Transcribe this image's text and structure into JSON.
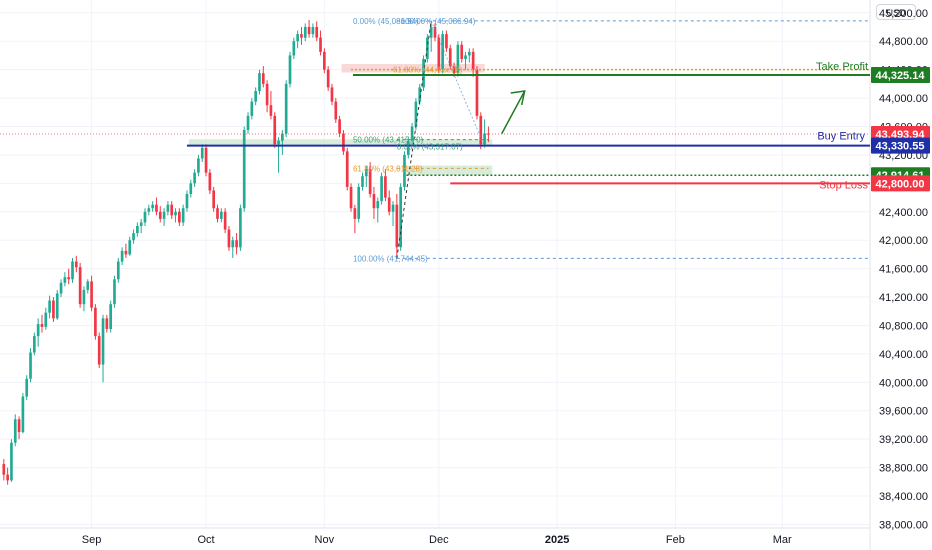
{
  "currency_button": "USD",
  "chart_data": {
    "type": "candlestick",
    "y_axis": {
      "ticks": [
        "45,200.00",
        "44,800.00",
        "44,400.00",
        "44,000.00",
        "43,600.00",
        "43,200.00",
        "42,800.00",
        "42,400.00",
        "42,000.00",
        "41,600.00",
        "41,200.00",
        "40,800.00",
        "40,400.00",
        "40,000.00",
        "39,600.00",
        "39,200.00",
        "38,800.00",
        "38,400.00",
        "38,000.00"
      ],
      "tick_values": [
        45200,
        44800,
        44400,
        44000,
        43600,
        43200,
        42800,
        42400,
        42000,
        41600,
        41200,
        40800,
        40400,
        40000,
        39600,
        39200,
        38800,
        38400,
        38000
      ],
      "range": [
        37950,
        45380
      ],
      "position": "right"
    },
    "x_axis": {
      "labels": [
        "Sep",
        "Oct",
        "Nov",
        "Dec",
        "2025",
        "Feb",
        "Mar"
      ],
      "label_days": [
        12,
        42,
        73,
        103,
        134,
        165,
        193
      ],
      "range": [
        -12,
        216
      ],
      "bold_label": "2025"
    },
    "price_tags": [
      {
        "text": "44,325.14",
        "value": 44325.14,
        "color": "#1e7d22"
      },
      {
        "text": "43,493.94",
        "value": 43493.94,
        "color": "#f23645"
      },
      {
        "text": "43,330.55",
        "value": 43330.55,
        "color": "#1f2fa8"
      },
      {
        "text": "42,914.61",
        "value": 42914.61,
        "color": "#1e7d22"
      },
      {
        "text": "42,800.00",
        "value": 42800.0,
        "color": "#f23645"
      }
    ],
    "annotations": {
      "take_profit": {
        "text": "Take Profit",
        "value": 44325.14,
        "color": "#1e7d22"
      },
      "buy_entry": {
        "text": "Buy Entry",
        "value": 43330.55,
        "color": "#1f2fa8"
      },
      "stop_loss": {
        "text": "Stop Loss",
        "value": 42800.0,
        "color": "#f23645"
      }
    },
    "fib_upper": [
      {
        "text": "0.00% (45,086.94)",
        "value": 45086.94,
        "color": "#5b9bd5"
      },
      {
        "text": "100.00% (45,086.94)",
        "value": 45086.94,
        "color": "#5b9bd5"
      },
      {
        "text": "61.80% (44,4xx.72)",
        "value": 44410,
        "color": "#e39b2d"
      },
      {
        "text": "50.00% (43,415.70)",
        "value": 43415.7,
        "color": "#3aa07a"
      },
      {
        "text": "0.00% (43,317.07)",
        "value": 43317.07,
        "color": "#3aa07a"
      }
    ],
    "fib_lower": [
      {
        "text": "61.80% (43,011.28)",
        "value": 43011.28,
        "color": "#e39b2d"
      },
      {
        "text": "100.00% (41,744.45)",
        "value": 41744.45,
        "color": "#5b9bd5"
      }
    ],
    "last_price": 43493.94,
    "candles": [
      [
        -11,
        38850,
        38920,
        38620,
        38700
      ],
      [
        -10,
        38700,
        38800,
        38560,
        38620
      ],
      [
        -9,
        38620,
        39200,
        38600,
        39150
      ],
      [
        -8,
        39150,
        39550,
        39100,
        39480
      ],
      [
        -7,
        39480,
        39520,
        39200,
        39300
      ],
      [
        -6,
        39300,
        39850,
        39280,
        39800
      ],
      [
        -5,
        39800,
        40100,
        39750,
        40050
      ],
      [
        -4,
        40050,
        40480,
        40000,
        40420
      ],
      [
        -3,
        40420,
        40700,
        40380,
        40650
      ],
      [
        -2,
        40650,
        40900,
        40500,
        40820
      ],
      [
        -1,
        40820,
        40950,
        40700,
        40780
      ],
      [
        0,
        40780,
        41050,
        40740,
        40980
      ],
      [
        1,
        40980,
        41220,
        40900,
        41150
      ],
      [
        2,
        41150,
        41200,
        40850,
        40900
      ],
      [
        3,
        40900,
        41300,
        40880,
        41250
      ],
      [
        4,
        41250,
        41450,
        41200,
        41400
      ],
      [
        5,
        41400,
        41550,
        41350,
        41480
      ],
      [
        6,
        41480,
        41600,
        41380,
        41450
      ],
      [
        7,
        41450,
        41750,
        41400,
        41700
      ],
      [
        8,
        41700,
        41780,
        41550,
        41620
      ],
      [
        9,
        41620,
        41680,
        41050,
        41100
      ],
      [
        10,
        41100,
        41350,
        41000,
        41300
      ],
      [
        11,
        41300,
        41450,
        41250,
        41420
      ],
      [
        12,
        41420,
        41500,
        41000,
        41050
      ],
      [
        13,
        41050,
        41100,
        40600,
        40650
      ],
      [
        14,
        40650,
        40700,
        40200,
        40250
      ],
      [
        15,
        40250,
        40950,
        40000,
        40900
      ],
      [
        16,
        40900,
        40950,
        40700,
        40750
      ],
      [
        17,
        40750,
        41150,
        40700,
        41100
      ],
      [
        18,
        41100,
        41500,
        41050,
        41450
      ],
      [
        19,
        41450,
        41750,
        41400,
        41700
      ],
      [
        20,
        41700,
        41900,
        41650,
        41850
      ],
      [
        21,
        41850,
        41950,
        41750,
        41800
      ],
      [
        22,
        41800,
        42050,
        41780,
        42000
      ],
      [
        23,
        42000,
        42150,
        41950,
        42100
      ],
      [
        24,
        42100,
        42250,
        42050,
        42200
      ],
      [
        25,
        42200,
        42300,
        42100,
        42250
      ],
      [
        26,
        42250,
        42450,
        42200,
        42400
      ],
      [
        27,
        42400,
        42500,
        42350,
        42450
      ],
      [
        28,
        42450,
        42550,
        42400,
        42500
      ],
      [
        29,
        42500,
        42600,
        42350,
        42400
      ],
      [
        30,
        42400,
        42480,
        42250,
        42300
      ],
      [
        31,
        42300,
        42450,
        42200,
        42400
      ],
      [
        32,
        42400,
        42550,
        42350,
        42500
      ],
      [
        33,
        42500,
        42550,
        42300,
        42350
      ],
      [
        34,
        42350,
        42450,
        42250,
        42400
      ],
      [
        35,
        42400,
        42450,
        42200,
        42250
      ],
      [
        36,
        42250,
        42500,
        42200,
        42450
      ],
      [
        37,
        42450,
        42700,
        42400,
        42650
      ],
      [
        38,
        42650,
        42850,
        42600,
        42800
      ],
      [
        39,
        42800,
        43000,
        42750,
        42950
      ],
      [
        40,
        42950,
        43200,
        42900,
        43150
      ],
      [
        41,
        43150,
        43350,
        43100,
        43300
      ],
      [
        42,
        43300,
        43350,
        42900,
        42950
      ],
      [
        43,
        42950,
        43000,
        42650,
        42700
      ],
      [
        44,
        42700,
        42750,
        42400,
        42450
      ],
      [
        45,
        42450,
        42500,
        42250,
        42300
      ],
      [
        46,
        42300,
        42450,
        42250,
        42400
      ],
      [
        47,
        42400,
        42450,
        42100,
        42150
      ],
      [
        48,
        42150,
        42200,
        41850,
        41900
      ],
      [
        49,
        41900,
        42050,
        41750,
        42000
      ],
      [
        50,
        42000,
        42100,
        41800,
        41900
      ],
      [
        51,
        41900,
        42500,
        41850,
        42450
      ],
      [
        52,
        42450,
        43600,
        42400,
        43550
      ],
      [
        53,
        43550,
        43800,
        43500,
        43750
      ],
      [
        54,
        43750,
        44000,
        43700,
        43950
      ],
      [
        55,
        43950,
        44150,
        43900,
        44100
      ],
      [
        56,
        44100,
        44400,
        44050,
        44350
      ],
      [
        57,
        44350,
        44450,
        44150,
        44200
      ],
      [
        58,
        44200,
        44250,
        43800,
        43900
      ],
      [
        59,
        43900,
        44100,
        43700,
        43750
      ],
      [
        60,
        43750,
        43800,
        43300,
        43350
      ],
      [
        61,
        43350,
        43450,
        42950,
        43400
      ],
      [
        62,
        43400,
        43550,
        43200,
        43500
      ],
      [
        63,
        43500,
        44250,
        43450,
        44200
      ],
      [
        64,
        44200,
        44650,
        44150,
        44600
      ],
      [
        65,
        44600,
        44850,
        44550,
        44800
      ],
      [
        66,
        44800,
        44950,
        44700,
        44900
      ],
      [
        67,
        44900,
        45000,
        44750,
        44850
      ],
      [
        68,
        44850,
        45050,
        44800,
        45000
      ],
      [
        69,
        45000,
        45100,
        44850,
        44900
      ],
      [
        70,
        44900,
        45050,
        44850,
        45000
      ],
      [
        71,
        45000,
        45080,
        44800,
        44850
      ],
      [
        72,
        44850,
        44950,
        44600,
        44650
      ],
      [
        73,
        44650,
        44700,
        44350,
        44400
      ],
      [
        74,
        44400,
        44450,
        44100,
        44150
      ],
      [
        75,
        44150,
        44200,
        43900,
        43950
      ],
      [
        76,
        43950,
        44000,
        43650,
        43700
      ],
      [
        77,
        43700,
        43750,
        43450,
        43500
      ],
      [
        78,
        43500,
        43550,
        43200,
        43250
      ],
      [
        79,
        43250,
        43300,
        42700,
        42750
      ],
      [
        80,
        42750,
        42800,
        42400,
        42450
      ],
      [
        81,
        42450,
        42500,
        42100,
        42300
      ],
      [
        82,
        42300,
        42800,
        42250,
        42750
      ],
      [
        83,
        42750,
        42950,
        42700,
        42900
      ],
      [
        84,
        42900,
        43050,
        42750,
        43000
      ],
      [
        85,
        43000,
        43100,
        42600,
        42650
      ],
      [
        86,
        42650,
        42750,
        42300,
        42450
      ],
      [
        87,
        42450,
        42600,
        42250,
        42550
      ],
      [
        88,
        42550,
        42950,
        42500,
        42900
      ],
      [
        89,
        42900,
        43000,
        42550,
        42600
      ],
      [
        90,
        42600,
        42700,
        42350,
        42400
      ],
      [
        91,
        42400,
        42550,
        42200,
        42500
      ],
      [
        92,
        42500,
        42650,
        41750,
        41900
      ],
      [
        93,
        41900,
        42800,
        41850,
        42750
      ],
      [
        94,
        42750,
        43250,
        42700,
        43200
      ],
      [
        95,
        43200,
        43450,
        43150,
        43400
      ],
      [
        96,
        43400,
        43650,
        43350,
        43600
      ],
      [
        97,
        43600,
        44000,
        43550,
        43950
      ],
      [
        98,
        43950,
        44200,
        43900,
        44150
      ],
      [
        99,
        44150,
        44600,
        44100,
        44550
      ],
      [
        100,
        44550,
        44900,
        44500,
        44850
      ],
      [
        101,
        44850,
        45087,
        44650,
        45000
      ],
      [
        102,
        45000,
        45050,
        44800,
        44850
      ],
      [
        103,
        44850,
        44900,
        44350,
        44400
      ],
      [
        104,
        44400,
        44950,
        44350,
        44900
      ],
      [
        105,
        44900,
        44950,
        44650,
        44700
      ],
      [
        106,
        44700,
        44750,
        44400,
        44450
      ],
      [
        107,
        44450,
        44500,
        44300,
        44350
      ],
      [
        108,
        44350,
        44800,
        44300,
        44750
      ],
      [
        109,
        44750,
        44800,
        44500,
        44550
      ],
      [
        110,
        44550,
        44650,
        44400,
        44600
      ],
      [
        111,
        44600,
        44700,
        44500,
        44650
      ],
      [
        112,
        44650,
        44700,
        44300,
        44400
      ],
      [
        113,
        44400,
        44450,
        43700,
        43750
      ],
      [
        114,
        43750,
        43800,
        43280,
        43350
      ],
      [
        115,
        43350,
        43700,
        43300,
        43500
      ],
      [
        116,
        43500,
        43600,
        43380,
        43494
      ]
    ]
  }
}
